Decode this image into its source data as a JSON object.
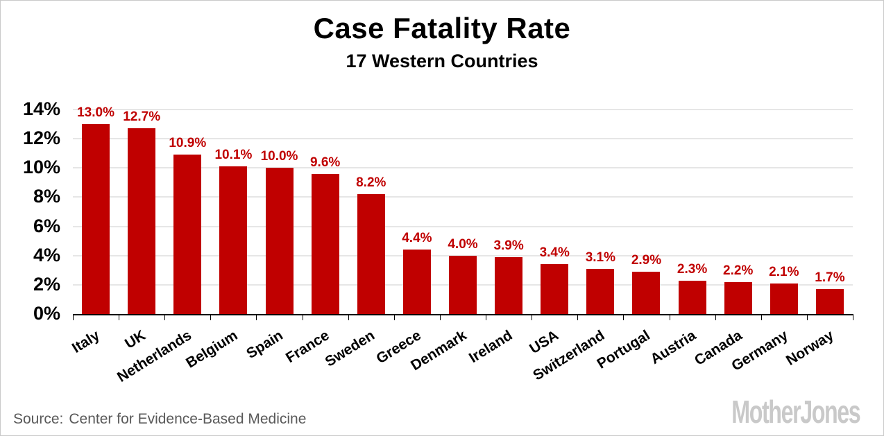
{
  "chart": {
    "title": "Case Fatality Rate",
    "subtitle": "17 Western Countries"
  },
  "chart_data": {
    "type": "bar",
    "title": "Case Fatality Rate",
    "subtitle": "17 Western Countries",
    "categories": [
      "Italy",
      "UK",
      "Netherlands",
      "Belgium",
      "Spain",
      "France",
      "Sweden",
      "Greece",
      "Denmark",
      "Ireland",
      "USA",
      "Switzerland",
      "Portugal",
      "Austria",
      "Canada",
      "Germany",
      "Norway"
    ],
    "values": [
      13.0,
      12.7,
      10.9,
      10.1,
      10.0,
      9.6,
      8.2,
      4.4,
      4.0,
      3.9,
      3.4,
      3.1,
      2.9,
      2.3,
      2.2,
      2.1,
      1.7
    ],
    "value_labels": [
      "13.0%",
      "12.7%",
      "10.9%",
      "10.1%",
      "10.0%",
      "9.6%",
      "8.2%",
      "4.4%",
      "4.0%",
      "3.9%",
      "3.4%",
      "3.1%",
      "2.9%",
      "2.3%",
      "2.2%",
      "2.1%",
      "1.7%"
    ],
    "xlabel": "",
    "ylabel": "",
    "ylim": [
      0,
      14
    ],
    "ytick_step": 2,
    "ytick_labels": [
      "0%",
      "2%",
      "4%",
      "6%",
      "8%",
      "10%",
      "12%",
      "14%"
    ],
    "grid": true,
    "legend": false,
    "bar_color": "#c00000",
    "data_label_color": "#c00000",
    "category_label_angle_deg": -32
  },
  "footer": {
    "source_label": "Source:",
    "source_text": "Center for Evidence-Based Medicine",
    "logo": "MotherJones"
  },
  "colors": {
    "background": "#ffffff",
    "border": "#c9c9c9",
    "bar": "#c00000",
    "data_label": "#c00000",
    "grid": "#e6e6e6",
    "axis": "#000000",
    "text": "#000000",
    "source_text": "#595959",
    "logo": "#c9c9c9"
  }
}
